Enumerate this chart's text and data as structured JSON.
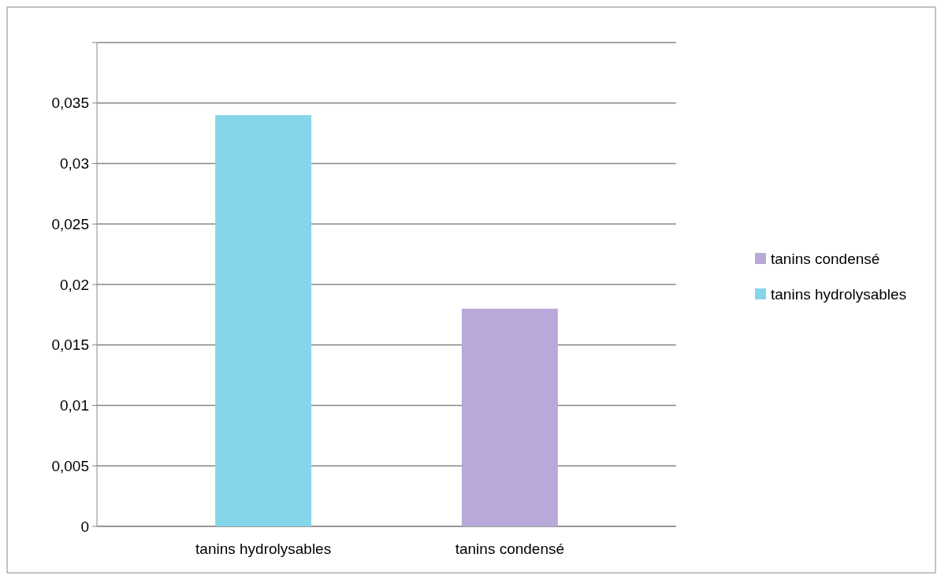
{
  "chart_data": {
    "type": "bar",
    "categories": [
      "tanins hydrolysables",
      "tanins condensé"
    ],
    "series": [
      {
        "name": "tanins condensé",
        "color": "#b9a9d8",
        "values": [
          null,
          0.018
        ]
      },
      {
        "name": "tanins hydrolysables",
        "color": "#86d6ea",
        "values": [
          0.034,
          null
        ]
      }
    ],
    "ylim": [
      0,
      0.04
    ],
    "yticks": [
      0,
      {
        "value": 0.005,
        "label": "0,005"
      },
      {
        "value": 0.01,
        "label": "0,01"
      },
      {
        "value": 0.015,
        "label": "0,015"
      },
      {
        "value": 0.02,
        "label": "0,02"
      },
      {
        "value": 0.025,
        "label": "0,025"
      },
      {
        "value": 0.03,
        "label": "0,03"
      },
      {
        "value": 0.035,
        "label": "0,035"
      },
      {
        "value": 0.04,
        "label": null
      }
    ],
    "grid": "y",
    "legend": "right"
  }
}
